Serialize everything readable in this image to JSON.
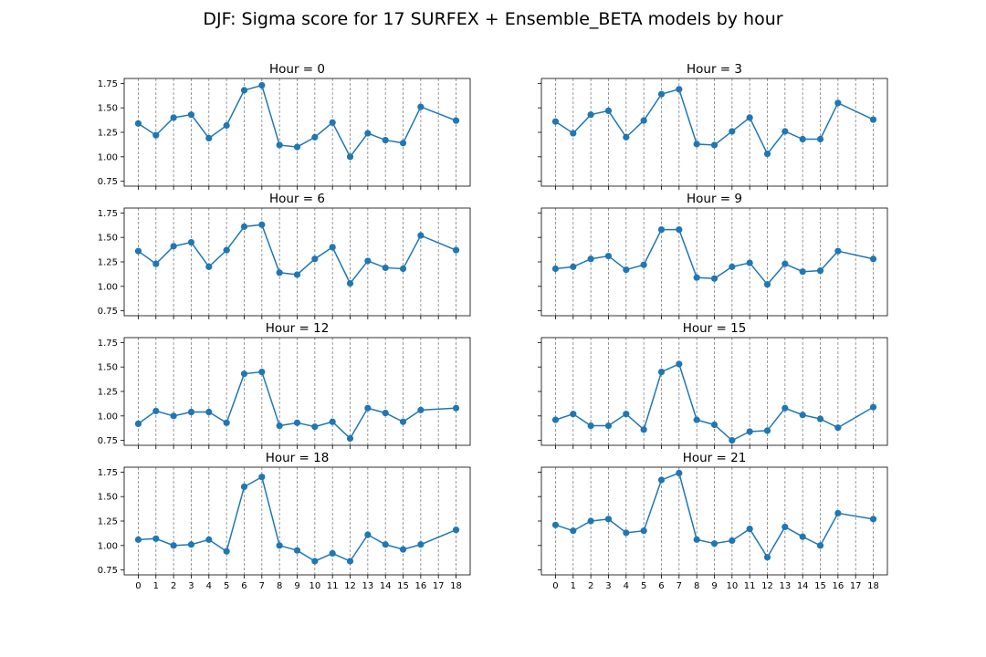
{
  "title": "DJF: Sigma score for 17 SURFEX + Ensemble_BETA models by hour",
  "chart_data": [
    {
      "type": "line",
      "title": "Hour = 0",
      "x": [
        0,
        1,
        2,
        3,
        4,
        5,
        6,
        7,
        8,
        9,
        10,
        11,
        12,
        13,
        14,
        15,
        16,
        18
      ],
      "values": [
        1.34,
        1.22,
        1.4,
        1.43,
        1.19,
        1.32,
        1.68,
        1.73,
        1.12,
        1.1,
        1.2,
        1.35,
        1.0,
        1.24,
        1.17,
        1.14,
        1.51,
        1.37
      ],
      "ylim": [
        0.7,
        1.8
      ],
      "yticks": [
        "0.75",
        "1.00",
        "1.25",
        "1.50",
        "1.75"
      ],
      "xticks": [
        0,
        1,
        2,
        3,
        4,
        5,
        6,
        7,
        8,
        9,
        10,
        11,
        12,
        13,
        14,
        15,
        16,
        17,
        18
      ],
      "grid": "vertical dashed",
      "color": "#1f77b4"
    },
    {
      "type": "line",
      "title": "Hour = 3",
      "x": [
        0,
        1,
        2,
        3,
        4,
        5,
        6,
        7,
        8,
        9,
        10,
        11,
        12,
        13,
        14,
        15,
        16,
        18
      ],
      "values": [
        1.36,
        1.24,
        1.43,
        1.47,
        1.2,
        1.37,
        1.64,
        1.69,
        1.13,
        1.12,
        1.26,
        1.4,
        1.03,
        1.26,
        1.18,
        1.18,
        1.55,
        1.38
      ],
      "ylim": [
        0.7,
        1.8
      ],
      "yticks": [
        "0.75",
        "1.00",
        "1.25",
        "1.50",
        "1.75"
      ],
      "xticks": [
        0,
        1,
        2,
        3,
        4,
        5,
        6,
        7,
        8,
        9,
        10,
        11,
        12,
        13,
        14,
        15,
        16,
        17,
        18
      ],
      "grid": "vertical dashed",
      "color": "#1f77b4"
    },
    {
      "type": "line",
      "title": "Hour = 6",
      "x": [
        0,
        1,
        2,
        3,
        4,
        5,
        6,
        7,
        8,
        9,
        10,
        11,
        12,
        13,
        14,
        15,
        16,
        18
      ],
      "values": [
        1.36,
        1.23,
        1.41,
        1.45,
        1.2,
        1.37,
        1.61,
        1.63,
        1.14,
        1.12,
        1.28,
        1.4,
        1.03,
        1.26,
        1.19,
        1.18,
        1.52,
        1.37
      ],
      "ylim": [
        0.7,
        1.8
      ],
      "yticks": [
        "0.75",
        "1.00",
        "1.25",
        "1.50",
        "1.75"
      ],
      "xticks": [
        0,
        1,
        2,
        3,
        4,
        5,
        6,
        7,
        8,
        9,
        10,
        11,
        12,
        13,
        14,
        15,
        16,
        17,
        18
      ],
      "grid": "vertical dashed",
      "color": "#1f77b4"
    },
    {
      "type": "line",
      "title": "Hour = 9",
      "x": [
        0,
        1,
        2,
        3,
        4,
        5,
        6,
        7,
        8,
        9,
        10,
        11,
        12,
        13,
        14,
        15,
        16,
        18
      ],
      "values": [
        1.18,
        1.2,
        1.28,
        1.31,
        1.17,
        1.22,
        1.58,
        1.58,
        1.09,
        1.08,
        1.2,
        1.24,
        1.02,
        1.23,
        1.15,
        1.16,
        1.36,
        1.28
      ],
      "ylim": [
        0.7,
        1.8
      ],
      "yticks": [
        "0.75",
        "1.00",
        "1.25",
        "1.50",
        "1.75"
      ],
      "xticks": [
        0,
        1,
        2,
        3,
        4,
        5,
        6,
        7,
        8,
        9,
        10,
        11,
        12,
        13,
        14,
        15,
        16,
        17,
        18
      ],
      "grid": "vertical dashed",
      "color": "#1f77b4"
    },
    {
      "type": "line",
      "title": "Hour = 12",
      "x": [
        0,
        1,
        2,
        3,
        4,
        5,
        6,
        7,
        8,
        9,
        10,
        11,
        12,
        13,
        14,
        15,
        16,
        18
      ],
      "values": [
        0.92,
        1.05,
        1.0,
        1.04,
        1.04,
        0.93,
        1.43,
        1.45,
        0.9,
        0.93,
        0.89,
        0.94,
        0.77,
        1.08,
        1.03,
        0.94,
        1.06,
        1.08
      ],
      "ylim": [
        0.7,
        1.8
      ],
      "yticks": [
        "0.75",
        "1.00",
        "1.25",
        "1.50",
        "1.75"
      ],
      "xticks": [
        0,
        1,
        2,
        3,
        4,
        5,
        6,
        7,
        8,
        9,
        10,
        11,
        12,
        13,
        14,
        15,
        16,
        17,
        18
      ],
      "grid": "vertical dashed",
      "color": "#1f77b4"
    },
    {
      "type": "line",
      "title": "Hour = 15",
      "x": [
        0,
        1,
        2,
        3,
        4,
        5,
        6,
        7,
        8,
        9,
        10,
        11,
        12,
        13,
        14,
        15,
        16,
        18
      ],
      "values": [
        0.96,
        1.02,
        0.9,
        0.9,
        1.02,
        0.86,
        1.45,
        1.53,
        0.96,
        0.91,
        0.75,
        0.84,
        0.85,
        1.08,
        1.01,
        0.97,
        0.88,
        1.09
      ],
      "ylim": [
        0.7,
        1.8
      ],
      "yticks": [
        "0.75",
        "1.00",
        "1.25",
        "1.50",
        "1.75"
      ],
      "xticks": [
        0,
        1,
        2,
        3,
        4,
        5,
        6,
        7,
        8,
        9,
        10,
        11,
        12,
        13,
        14,
        15,
        16,
        17,
        18
      ],
      "grid": "vertical dashed",
      "color": "#1f77b4"
    },
    {
      "type": "line",
      "title": "Hour = 18",
      "x": [
        0,
        1,
        2,
        3,
        4,
        5,
        6,
        7,
        8,
        9,
        10,
        11,
        12,
        13,
        14,
        15,
        16,
        18
      ],
      "values": [
        1.06,
        1.07,
        1.0,
        1.01,
        1.06,
        0.94,
        1.6,
        1.7,
        1.0,
        0.95,
        0.84,
        0.92,
        0.84,
        1.11,
        1.01,
        0.96,
        1.01,
        1.16
      ],
      "ylim": [
        0.7,
        1.8
      ],
      "yticks": [
        "0.75",
        "1.00",
        "1.25",
        "1.50",
        "1.75"
      ],
      "xticks": [
        0,
        1,
        2,
        3,
        4,
        5,
        6,
        7,
        8,
        9,
        10,
        11,
        12,
        13,
        14,
        15,
        16,
        17,
        18
      ],
      "grid": "vertical dashed",
      "color": "#1f77b4"
    },
    {
      "type": "line",
      "title": "Hour = 21",
      "x": [
        0,
        1,
        2,
        3,
        4,
        5,
        6,
        7,
        8,
        9,
        10,
        11,
        12,
        13,
        14,
        15,
        16,
        18
      ],
      "values": [
        1.21,
        1.15,
        1.25,
        1.27,
        1.13,
        1.15,
        1.67,
        1.74,
        1.06,
        1.02,
        1.05,
        1.17,
        0.88,
        1.19,
        1.09,
        1.0,
        1.33,
        1.27
      ],
      "ylim": [
        0.7,
        1.8
      ],
      "yticks": [
        "0.75",
        "1.00",
        "1.25",
        "1.50",
        "1.75"
      ],
      "xticks": [
        0,
        1,
        2,
        3,
        4,
        5,
        6,
        7,
        8,
        9,
        10,
        11,
        12,
        13,
        14,
        15,
        16,
        17,
        18
      ],
      "grid": "vertical dashed",
      "color": "#1f77b4"
    }
  ]
}
